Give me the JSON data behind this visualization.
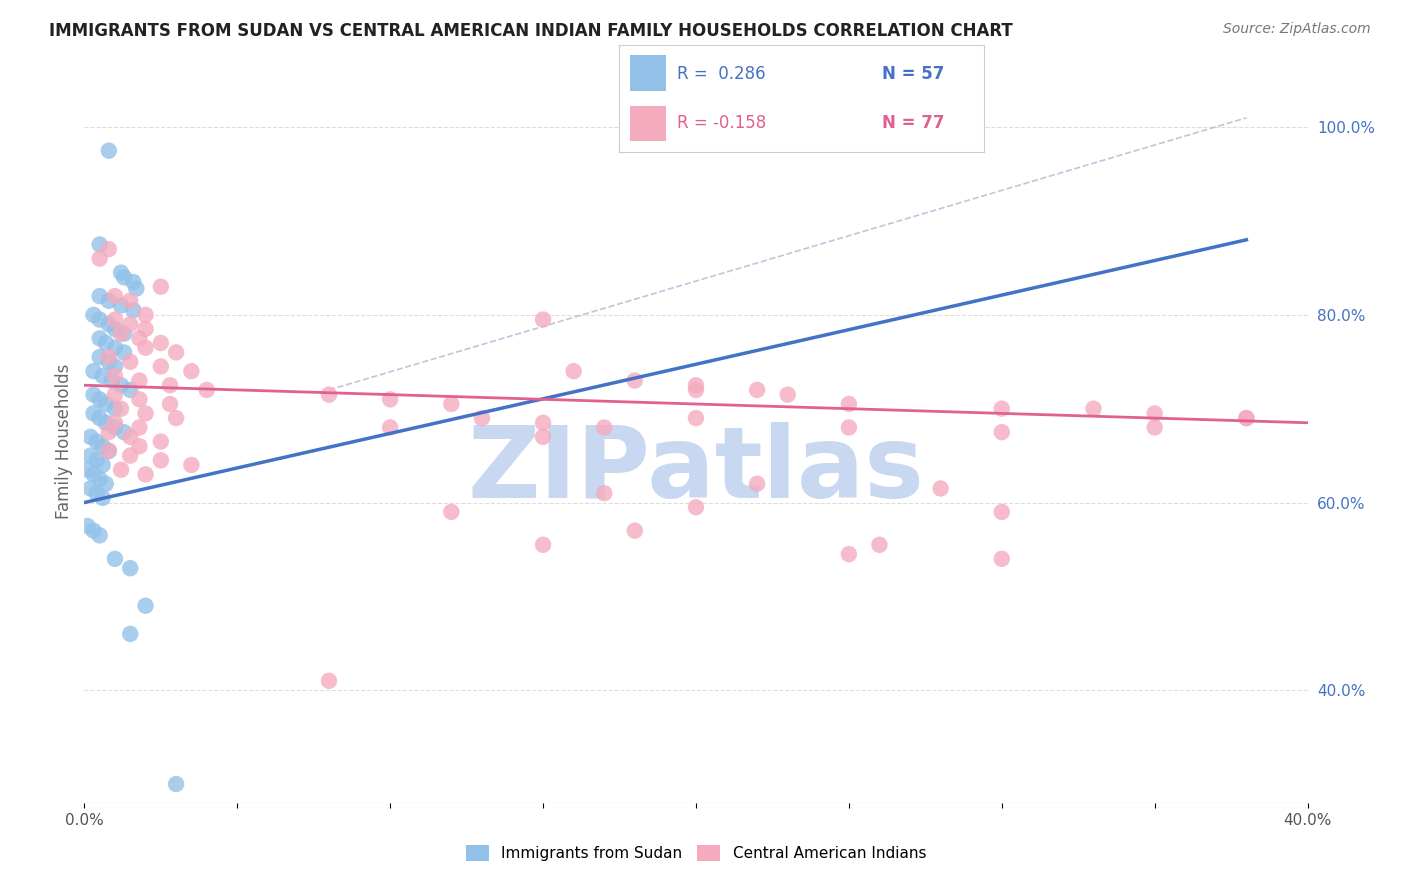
{
  "title": "IMMIGRANTS FROM SUDAN VS CENTRAL AMERICAN INDIAN FAMILY HOUSEHOLDS CORRELATION CHART",
  "source": "Source: ZipAtlas.com",
  "ylabel": "Family Households",
  "xlim": [
    0.0,
    0.4
  ],
  "ylim": [
    0.28,
    1.05
  ],
  "x_ticks": [
    0.0,
    0.05,
    0.1,
    0.15,
    0.2,
    0.25,
    0.3,
    0.35,
    0.4
  ],
  "x_tick_labels": [
    "0.0%",
    "",
    "",
    "",
    "",
    "",
    "",
    "",
    "40.0%"
  ],
  "y_ticks_right": [
    0.4,
    0.6,
    0.8,
    1.0
  ],
  "y_tick_labels_right": [
    "40.0%",
    "60.0%",
    "80.0%",
    "100.0%"
  ],
  "color_blue": "#92C1E9",
  "color_pink": "#F4ABBE",
  "color_blue_line": "#4472C4",
  "color_pink_line": "#E06090",
  "color_blue_text": "#4472C4",
  "color_pink_text": "#E06090",
  "watermark": "ZIPatlas",
  "watermark_color": "#C8D8F0",
  "scatter_blue": [
    [
      0.008,
      0.975
    ],
    [
      0.005,
      0.875
    ],
    [
      0.012,
      0.845
    ],
    [
      0.013,
      0.84
    ],
    [
      0.016,
      0.835
    ],
    [
      0.017,
      0.828
    ],
    [
      0.005,
      0.82
    ],
    [
      0.008,
      0.815
    ],
    [
      0.012,
      0.81
    ],
    [
      0.016,
      0.805
    ],
    [
      0.003,
      0.8
    ],
    [
      0.005,
      0.795
    ],
    [
      0.008,
      0.79
    ],
    [
      0.01,
      0.785
    ],
    [
      0.013,
      0.78
    ],
    [
      0.005,
      0.775
    ],
    [
      0.007,
      0.77
    ],
    [
      0.01,
      0.765
    ],
    [
      0.013,
      0.76
    ],
    [
      0.005,
      0.755
    ],
    [
      0.008,
      0.75
    ],
    [
      0.01,
      0.745
    ],
    [
      0.003,
      0.74
    ],
    [
      0.006,
      0.735
    ],
    [
      0.009,
      0.73
    ],
    [
      0.012,
      0.725
    ],
    [
      0.015,
      0.72
    ],
    [
      0.003,
      0.715
    ],
    [
      0.005,
      0.71
    ],
    [
      0.007,
      0.705
    ],
    [
      0.01,
      0.7
    ],
    [
      0.003,
      0.695
    ],
    [
      0.005,
      0.69
    ],
    [
      0.007,
      0.685
    ],
    [
      0.01,
      0.68
    ],
    [
      0.013,
      0.675
    ],
    [
      0.002,
      0.67
    ],
    [
      0.004,
      0.665
    ],
    [
      0.006,
      0.66
    ],
    [
      0.008,
      0.655
    ],
    [
      0.002,
      0.65
    ],
    [
      0.004,
      0.645
    ],
    [
      0.006,
      0.64
    ],
    [
      0.001,
      0.635
    ],
    [
      0.003,
      0.63
    ],
    [
      0.005,
      0.625
    ],
    [
      0.007,
      0.62
    ],
    [
      0.002,
      0.615
    ],
    [
      0.004,
      0.61
    ],
    [
      0.006,
      0.605
    ],
    [
      0.001,
      0.575
    ],
    [
      0.003,
      0.57
    ],
    [
      0.005,
      0.565
    ],
    [
      0.01,
      0.54
    ],
    [
      0.015,
      0.53
    ],
    [
      0.02,
      0.49
    ],
    [
      0.015,
      0.46
    ],
    [
      0.03,
      0.3
    ]
  ],
  "scatter_pink": [
    [
      0.008,
      0.87
    ],
    [
      0.005,
      0.86
    ],
    [
      0.025,
      0.83
    ],
    [
      0.01,
      0.82
    ],
    [
      0.015,
      0.815
    ],
    [
      0.02,
      0.8
    ],
    [
      0.01,
      0.795
    ],
    [
      0.015,
      0.79
    ],
    [
      0.02,
      0.785
    ],
    [
      0.012,
      0.78
    ],
    [
      0.018,
      0.775
    ],
    [
      0.025,
      0.77
    ],
    [
      0.02,
      0.765
    ],
    [
      0.03,
      0.76
    ],
    [
      0.008,
      0.755
    ],
    [
      0.015,
      0.75
    ],
    [
      0.025,
      0.745
    ],
    [
      0.035,
      0.74
    ],
    [
      0.01,
      0.735
    ],
    [
      0.018,
      0.73
    ],
    [
      0.028,
      0.725
    ],
    [
      0.04,
      0.72
    ],
    [
      0.01,
      0.715
    ],
    [
      0.018,
      0.71
    ],
    [
      0.028,
      0.705
    ],
    [
      0.012,
      0.7
    ],
    [
      0.02,
      0.695
    ],
    [
      0.03,
      0.69
    ],
    [
      0.01,
      0.685
    ],
    [
      0.018,
      0.68
    ],
    [
      0.008,
      0.675
    ],
    [
      0.015,
      0.67
    ],
    [
      0.025,
      0.665
    ],
    [
      0.018,
      0.66
    ],
    [
      0.008,
      0.655
    ],
    [
      0.015,
      0.65
    ],
    [
      0.025,
      0.645
    ],
    [
      0.035,
      0.64
    ],
    [
      0.012,
      0.635
    ],
    [
      0.02,
      0.63
    ],
    [
      0.15,
      0.795
    ],
    [
      0.16,
      0.74
    ],
    [
      0.18,
      0.73
    ],
    [
      0.2,
      0.725
    ],
    [
      0.22,
      0.72
    ],
    [
      0.08,
      0.715
    ],
    [
      0.1,
      0.71
    ],
    [
      0.12,
      0.705
    ],
    [
      0.13,
      0.69
    ],
    [
      0.15,
      0.685
    ],
    [
      0.17,
      0.68
    ],
    [
      0.2,
      0.72
    ],
    [
      0.23,
      0.715
    ],
    [
      0.25,
      0.705
    ],
    [
      0.3,
      0.7
    ],
    [
      0.33,
      0.7
    ],
    [
      0.35,
      0.695
    ],
    [
      0.38,
      0.69
    ],
    [
      0.1,
      0.68
    ],
    [
      0.2,
      0.69
    ],
    [
      0.15,
      0.67
    ],
    [
      0.25,
      0.68
    ],
    [
      0.3,
      0.675
    ],
    [
      0.35,
      0.68
    ],
    [
      0.28,
      0.615
    ],
    [
      0.2,
      0.595
    ],
    [
      0.3,
      0.59
    ],
    [
      0.15,
      0.555
    ],
    [
      0.25,
      0.545
    ],
    [
      0.3,
      0.54
    ],
    [
      0.38,
      0.69
    ],
    [
      0.22,
      0.62
    ],
    [
      0.12,
      0.59
    ],
    [
      0.17,
      0.61
    ],
    [
      0.08,
      0.41
    ],
    [
      0.18,
      0.57
    ],
    [
      0.26,
      0.555
    ]
  ]
}
